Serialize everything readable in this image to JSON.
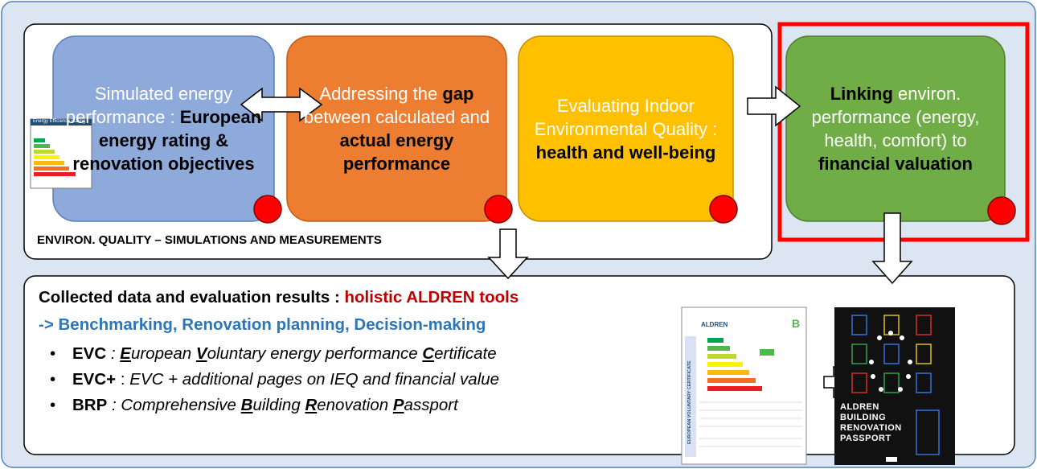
{
  "boxes": [
    [
      "Simulated energy performance :",
      "European energy rating & renovation objectives"
    ],
    [
      "Addressing the",
      "gap",
      "between calculated and",
      "actual energy performance"
    ],
    [
      "Evaluating Indoor Environmental Quality :",
      "health and well-being"
    ],
    [
      "Linking",
      "environ. performance (energy, health, comfort) to",
      "financial valuation"
    ]
  ],
  "top_label": "ENVIRON. QUALITY – SIMULATIONS AND MEASUREMENTS",
  "energy_label_title": "Energy Efficiency Rating",
  "results": {
    "heading": [
      "Collected data and evaluation results :",
      "holistic ALDREN tools"
    ],
    "subheading": "-> Benchmarking, Renovation planning, Decision-making",
    "bullets": [
      [
        "EVC",
        " : ",
        "E",
        "uropean ",
        "V",
        "oluntary energy performance ",
        "C",
        "ertificate"
      ],
      [
        "EVC+",
        " : ",
        "EVC + additional pages on IEQ and financial value"
      ],
      [
        "BRP",
        " : Comprehensive ",
        "B",
        "uilding ",
        "R",
        "enovation ",
        "P",
        "assport"
      ]
    ]
  },
  "certificate": {
    "brand": "ALDREN",
    "grade": "B",
    "side": "EUROPEAN VOLUNTARY CERTIFICATE"
  },
  "passport": [
    "ALDREN",
    "BUILDING",
    "RENOVATION",
    "PASSPORT"
  ]
}
